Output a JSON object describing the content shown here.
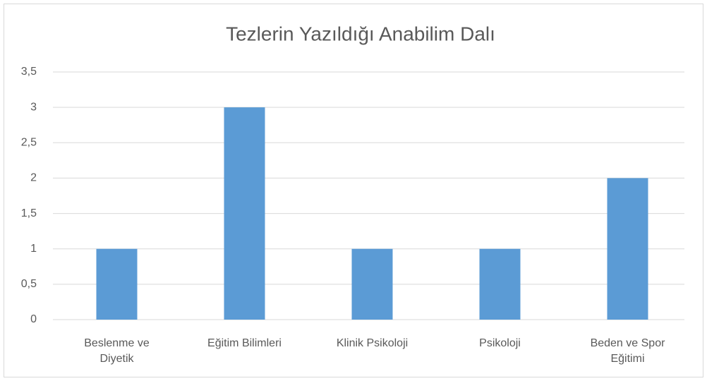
{
  "chart_data": {
    "type": "bar",
    "title": "Tezlerin Yazıldığı Anabilim Dalı",
    "categories": [
      "Beslenme ve Diyetik",
      "Eğitim Bilimleri",
      "Klinik Psikoloji",
      "Psikoloji",
      "Beden ve Spor Eğitimi"
    ],
    "values": [
      1,
      3,
      1,
      1,
      2
    ],
    "color": "#5b9bd5",
    "ylim": [
      0,
      3.5
    ],
    "yticks": [
      0,
      {
        "value": 0.5,
        "label": "0,5"
      },
      1,
      {
        "value": 1.5,
        "label": "1,5"
      },
      2,
      {
        "value": 2.5,
        "label": "2,5"
      },
      3,
      {
        "value": 3.5,
        "label": "3,5"
      }
    ],
    "grid": true
  }
}
